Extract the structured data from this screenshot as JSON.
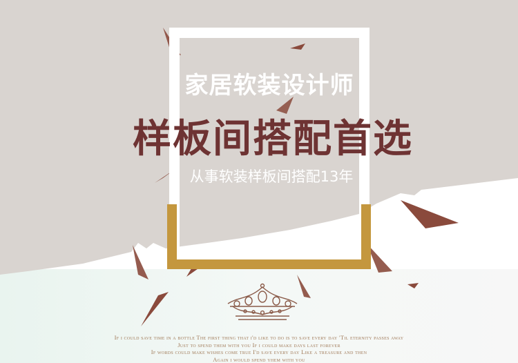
{
  "headline": {
    "subtitle": "家居软装设计师",
    "title": "样板间搭配首选",
    "tagline": "从事软装样板间搭配13年"
  },
  "poem": {
    "lines": [
      "If i could save time in a bottle The first thing that i'd like to do is to save every day 'Til eternity passes away",
      "Just to spend them with you If i could make days last forever",
      "If words could make wishes come true I'd save every day Like a treasure and then",
      "Again i would spend yhem with you"
    ]
  },
  "colors": {
    "background_gray": "#d9d4d0",
    "accent_brown": "#6e3333",
    "frame_gold": "#c4973e",
    "poem_text": "#a07a58"
  },
  "icons": {
    "crown": "crown-icon"
  }
}
